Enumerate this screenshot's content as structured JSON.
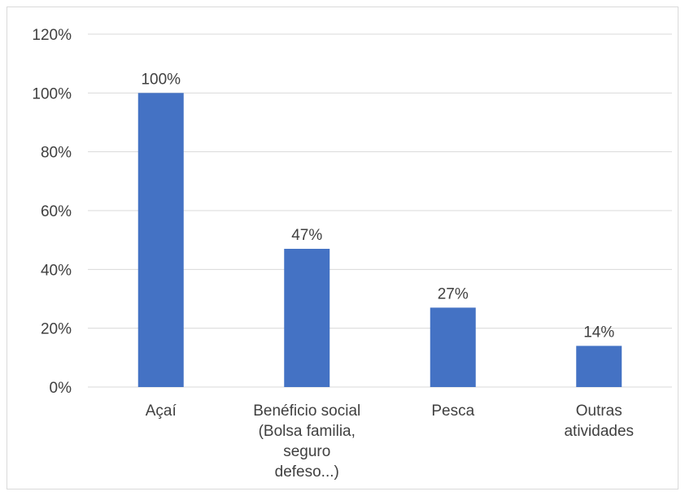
{
  "chart_data": {
    "type": "bar",
    "categories": [
      [
        "Açaí"
      ],
      [
        "Benéficio social",
        "(Bolsa familia,",
        "seguro",
        "defeso...)"
      ],
      [
        "Pesca"
      ],
      [
        "Outras",
        "atividades"
      ]
    ],
    "values": [
      100,
      47,
      27,
      14
    ],
    "data_labels": [
      "100%",
      "47%",
      "27%",
      "14%"
    ],
    "y_ticks": [
      "0%",
      "20%",
      "40%",
      "60%",
      "80%",
      "100%",
      "120%"
    ],
    "ylim": [
      0,
      120
    ],
    "grid": true,
    "bar_color": "#4472c4",
    "gridline_color": "#d9d9d9",
    "title": "",
    "xlabel": "",
    "ylabel": ""
  }
}
